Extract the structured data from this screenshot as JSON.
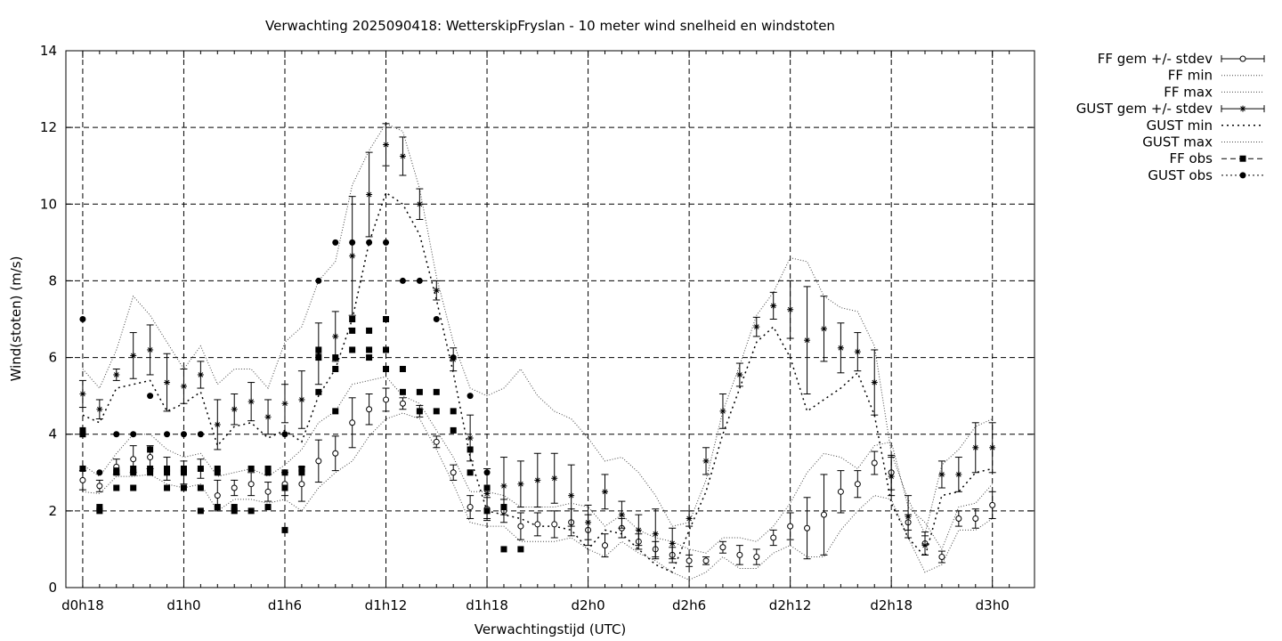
{
  "chart_data": {
    "type": "line",
    "title": "Verwachting 2025090418: WetterskipFryslan - 10 meter wind snelheid en windstoten",
    "xlabel": "Verwachtingstijd (UTC)",
    "ylabel": "Wind(stoten) (m/s)",
    "xlim": [
      -1,
      56.5
    ],
    "ylim": [
      0,
      14
    ],
    "yticks": [
      0,
      2,
      4,
      6,
      8,
      10,
      12,
      14
    ],
    "xticks": [
      {
        "x": 0,
        "label": "d0h18"
      },
      {
        "x": 6,
        "label": "d1h0"
      },
      {
        "x": 12,
        "label": "d1h6"
      },
      {
        "x": 18,
        "label": "d1h12"
      },
      {
        "x": 24,
        "label": "d1h18"
      },
      {
        "x": 30,
        "label": "d2h0"
      },
      {
        "x": 36,
        "label": "d2h6"
      },
      {
        "x": 42,
        "label": "d2h12"
      },
      {
        "x": 48,
        "label": "d2h18"
      },
      {
        "x": 54,
        "label": "d3h0"
      }
    ],
    "grid": true,
    "legend_position": "outside top-right",
    "legend": [
      {
        "key": "ff_mean",
        "label": "FF gem +/- stdev"
      },
      {
        "key": "ff_min",
        "label": "FF min"
      },
      {
        "key": "ff_max",
        "label": "FF max"
      },
      {
        "key": "gust_mean",
        "label": "GUST gem +/- stdev"
      },
      {
        "key": "gust_min",
        "label": "GUST min"
      },
      {
        "key": "gust_max",
        "label": "GUST max"
      },
      {
        "key": "ff_obs",
        "label": "FF obs"
      },
      {
        "key": "gust_obs",
        "label": "GUST obs"
      }
    ],
    "ff_mean": {
      "x": [
        0,
        1,
        2,
        3,
        4,
        5,
        6,
        7,
        8,
        9,
        10,
        11,
        12,
        13,
        14,
        15,
        16,
        17,
        18,
        19,
        20,
        21,
        22,
        23,
        24,
        25,
        26,
        27,
        28,
        29,
        30,
        31,
        32,
        33,
        34,
        35,
        36,
        37,
        38,
        39,
        40,
        41,
        42,
        43,
        44,
        45,
        46,
        47,
        48,
        49,
        50,
        51,
        52,
        53,
        54
      ],
      "y": [
        2.8,
        2.65,
        3.15,
        3.35,
        3.4,
        3.1,
        3.0,
        3.1,
        2.4,
        2.6,
        2.7,
        2.5,
        2.7,
        2.7,
        3.3,
        3.5,
        4.3,
        4.65,
        4.9,
        4.8,
        4.6,
        3.8,
        3.0,
        2.1,
        2.05,
        2.0,
        1.6,
        1.65,
        1.65,
        1.7,
        1.5,
        1.1,
        1.55,
        1.2,
        1.0,
        0.85,
        0.7,
        0.7,
        1.05,
        0.85,
        0.8,
        1.3,
        1.6,
        1.55,
        1.9,
        2.5,
        2.7,
        3.25,
        3.0,
        1.7,
        1.15,
        0.8,
        1.8,
        1.8,
        2.15
      ],
      "sd": [
        0.25,
        0.15,
        0.2,
        0.35,
        0.3,
        0.3,
        0.3,
        0.25,
        0.4,
        0.2,
        0.3,
        0.25,
        0.3,
        0.45,
        0.55,
        0.45,
        0.65,
        0.4,
        0.3,
        0.15,
        0.15,
        0.15,
        0.2,
        0.3,
        0.3,
        0.3,
        0.35,
        0.3,
        0.35,
        0.35,
        0.4,
        0.3,
        0.25,
        0.2,
        0.2,
        0.2,
        0.15,
        0.1,
        0.15,
        0.25,
        0.2,
        0.2,
        0.35,
        0.8,
        1.05,
        0.55,
        0.35,
        0.3,
        0.45,
        0.2,
        0.3,
        0.15,
        0.2,
        0.25,
        0.35
      ]
    },
    "ff_min": {
      "x": [
        0,
        1,
        2,
        3,
        4,
        5,
        6,
        7,
        8,
        9,
        10,
        11,
        12,
        13,
        14,
        15,
        16,
        17,
        18,
        19,
        20,
        21,
        22,
        23,
        24,
        25,
        26,
        27,
        28,
        29,
        30,
        31,
        32,
        33,
        34,
        35,
        36,
        37,
        38,
        39,
        40,
        41,
        42,
        43,
        44,
        45,
        46,
        47,
        48,
        49,
        50,
        51,
        52,
        53,
        54
      ],
      "y": [
        2.5,
        2.45,
        2.9,
        2.9,
        2.95,
        2.7,
        2.6,
        2.7,
        2.0,
        2.3,
        2.3,
        2.2,
        2.3,
        2.0,
        2.6,
        3.0,
        3.3,
        3.95,
        4.4,
        4.55,
        4.4,
        3.6,
        2.7,
        1.7,
        1.6,
        1.6,
        1.2,
        1.2,
        1.2,
        1.3,
        1.0,
        0.8,
        1.2,
        0.9,
        0.7,
        0.4,
        0.2,
        0.4,
        0.8,
        0.5,
        0.5,
        0.9,
        1.1,
        0.8,
        0.8,
        1.5,
        2.0,
        2.4,
        2.3,
        1.3,
        0.4,
        0.6,
        1.5,
        1.5,
        1.8
      ]
    },
    "ff_max": {
      "x": [
        0,
        1,
        2,
        3,
        4,
        5,
        6,
        7,
        8,
        9,
        10,
        11,
        12,
        13,
        14,
        15,
        16,
        17,
        18,
        19,
        20,
        21,
        22,
        23,
        24,
        25,
        26,
        27,
        28,
        29,
        30,
        31,
        32,
        33,
        34,
        35,
        36,
        37,
        38,
        39,
        40,
        41,
        42,
        43,
        44,
        45,
        46,
        47,
        48,
        49,
        50,
        51,
        52,
        53,
        54
      ],
      "y": [
        3.2,
        2.9,
        3.5,
        4.0,
        4.0,
        3.6,
        3.4,
        3.5,
        2.9,
        3.0,
        3.1,
        2.9,
        3.2,
        3.6,
        4.3,
        4.6,
        5.3,
        5.4,
        5.5,
        5.0,
        4.8,
        4.1,
        3.4,
        2.5,
        2.5,
        2.4,
        2.1,
        2.1,
        2.1,
        2.2,
        2.1,
        1.6,
        1.9,
        1.5,
        1.3,
        1.2,
        1.0,
        0.9,
        1.3,
        1.3,
        1.2,
        1.6,
        2.2,
        3.0,
        3.5,
        3.4,
        3.1,
        3.7,
        3.8,
        2.1,
        1.7,
        1.0,
        2.1,
        2.2,
        2.7
      ]
    },
    "gust_mean": {
      "x": [
        0,
        1,
        2,
        3,
        4,
        5,
        6,
        7,
        8,
        9,
        10,
        11,
        12,
        13,
        14,
        15,
        16,
        17,
        18,
        19,
        20,
        21,
        22,
        23,
        24,
        25,
        26,
        27,
        28,
        29,
        30,
        31,
        32,
        33,
        34,
        35,
        36,
        37,
        38,
        39,
        40,
        41,
        42,
        43,
        44,
        45,
        46,
        47,
        48,
        49,
        50,
        51,
        52,
        53,
        54
      ],
      "y": [
        5.05,
        4.65,
        5.55,
        6.05,
        6.2,
        5.35,
        5.25,
        5.55,
        4.25,
        4.65,
        4.85,
        4.45,
        4.8,
        4.9,
        6.1,
        6.55,
        8.65,
        10.25,
        11.55,
        11.25,
        10.0,
        7.75,
        5.95,
        3.9,
        2.45,
        2.65,
        2.7,
        2.8,
        2.85,
        2.4,
        1.7,
        2.5,
        1.9,
        1.5,
        1.4,
        1.15,
        1.8,
        3.3,
        4.6,
        5.55,
        6.8,
        7.35,
        7.25,
        6.45,
        6.75,
        6.25,
        6.15,
        5.35,
        2.9,
        1.85,
        1.1,
        2.95,
        2.95,
        3.65,
        3.65
      ]
    },
    "gust_sd": [
      0.35,
      0.25,
      0.15,
      0.6,
      0.65,
      0.75,
      0.45,
      0.35,
      0.65,
      0.4,
      0.5,
      0.45,
      0.5,
      0.75,
      0.8,
      0.65,
      1.55,
      1.1,
      0.55,
      0.5,
      0.4,
      0.25,
      0.3,
      0.6,
      0.65,
      0.75,
      0.6,
      0.7,
      0.65,
      0.8,
      0.45,
      0.45,
      0.35,
      0.4,
      0.65,
      0.4,
      0.2,
      0.35,
      0.45,
      0.3,
      0.25,
      0.35,
      0.75,
      1.4,
      0.85,
      0.65,
      0.5,
      0.85,
      0.5,
      0.55,
      0.25,
      0.35,
      0.45,
      0.65,
      0.65
    ],
    "gust_min": {
      "x": [
        0,
        1,
        2,
        3,
        4,
        5,
        6,
        7,
        8,
        9,
        10,
        11,
        12,
        13,
        14,
        15,
        16,
        17,
        18,
        19,
        20,
        21,
        22,
        23,
        24,
        25,
        26,
        27,
        28,
        29,
        30,
        31,
        32,
        33,
        34,
        35,
        36,
        37,
        38,
        39,
        40,
        41,
        42,
        43,
        44,
        45,
        46,
        47,
        48,
        49,
        50,
        51,
        52,
        53,
        54
      ],
      "y": [
        4.5,
        4.3,
        5.2,
        5.3,
        5.4,
        4.6,
        4.8,
        5.1,
        3.7,
        4.2,
        4.3,
        3.9,
        4.1,
        3.8,
        5.0,
        5.7,
        7.0,
        9.0,
        10.3,
        10.0,
        9.2,
        7.5,
        5.6,
        3.4,
        2.0,
        1.9,
        1.8,
        1.6,
        1.6,
        1.5,
        1.0,
        1.5,
        1.4,
        1.0,
        0.6,
        0.4,
        1.5,
        2.5,
        4.0,
        5.2,
        6.4,
        6.8,
        6.0,
        4.6,
        4.9,
        5.2,
        5.6,
        4.5,
        2.2,
        1.3,
        0.8,
        2.4,
        2.5,
        3.0,
        3.1
      ]
    },
    "gust_max": {
      "x": [
        0,
        1,
        2,
        3,
        4,
        5,
        6,
        7,
        8,
        9,
        10,
        11,
        12,
        13,
        14,
        15,
        16,
        17,
        18,
        19,
        20,
        21,
        22,
        23,
        24,
        25,
        26,
        27,
        28,
        29,
        30,
        31,
        32,
        33,
        34,
        35,
        36,
        37,
        38,
        39,
        40,
        41,
        42,
        43,
        44,
        45,
        46,
        47,
        48,
        49,
        50,
        51,
        52,
        53,
        54
      ],
      "y": [
        5.7,
        5.2,
        6.2,
        7.6,
        7.1,
        6.4,
        5.7,
        6.3,
        5.3,
        5.7,
        5.7,
        5.2,
        6.4,
        6.8,
        8.0,
        8.5,
        10.5,
        11.4,
        12.1,
        11.9,
        10.4,
        8.1,
        6.4,
        5.2,
        5.0,
        5.2,
        5.7,
        5.0,
        4.6,
        4.4,
        3.9,
        3.3,
        3.4,
        3.0,
        2.4,
        1.6,
        1.7,
        2.8,
        4.6,
        5.8,
        7.1,
        7.7,
        8.6,
        8.5,
        7.6,
        7.3,
        7.2,
        6.3,
        3.5,
        2.3,
        1.4,
        3.2,
        3.6,
        4.2,
        4.4
      ]
    },
    "ff_obs": {
      "x": [
        0,
        0,
        0,
        1,
        1,
        2,
        2,
        2,
        3,
        3,
        3,
        4,
        4,
        4,
        5,
        5,
        5,
        6,
        6,
        6,
        7,
        7,
        7,
        8,
        8,
        8,
        9,
        9,
        10,
        10,
        11,
        11,
        11,
        12,
        12,
        12,
        13,
        13,
        14,
        14,
        14,
        15,
        15,
        15,
        16,
        16,
        16,
        17,
        17,
        17,
        18,
        18,
        18,
        19,
        19,
        20,
        20,
        21,
        21,
        22,
        22,
        23,
        23,
        24,
        24,
        25,
        25,
        26
      ],
      "y": [
        4.0,
        4.1,
        3.1,
        2.0,
        2.1,
        3.0,
        3.05,
        2.6,
        3.1,
        3.0,
        2.6,
        3.6,
        3.1,
        3.0,
        3.0,
        3.1,
        2.6,
        3.1,
        3.0,
        2.6,
        3.1,
        2.6,
        2.0,
        3.0,
        3.1,
        2.1,
        2.1,
        2.0,
        3.1,
        2.0,
        3.0,
        3.1,
        2.1,
        3.0,
        2.6,
        1.5,
        3.1,
        3.0,
        6.2,
        6.0,
        5.1,
        6.0,
        5.7,
        4.6,
        7.0,
        6.7,
        6.2,
        6.7,
        6.2,
        6.0,
        7.0,
        6.2,
        5.7,
        5.7,
        5.1,
        5.1,
        4.6,
        5.1,
        4.6,
        4.6,
        4.1,
        3.6,
        3.0,
        2.6,
        2.0,
        2.1,
        1.0,
        1.0
      ]
    },
    "gust_obs": {
      "x": [
        0,
        1,
        2,
        3,
        4,
        5,
        6,
        7,
        12,
        14,
        15,
        16,
        17,
        18,
        19,
        20,
        21,
        22,
        23,
        24
      ],
      "y": [
        7.0,
        3.0,
        4.0,
        4.0,
        5.0,
        4.0,
        4.0,
        4.0,
        4.0,
        8.0,
        9.0,
        9.0,
        9.0,
        9.0,
        8.0,
        8.0,
        7.0,
        6.0,
        5.0,
        3.0
      ]
    }
  }
}
